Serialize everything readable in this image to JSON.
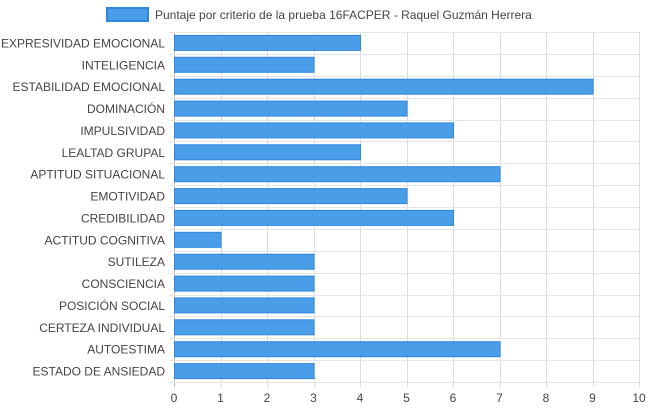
{
  "chart_data": {
    "type": "bar",
    "orientation": "horizontal",
    "categories": [
      "EXPRESIVIDAD EMOCIONAL",
      "INTELIGENCIA",
      "ESTABILIDAD EMOCIONAL",
      "DOMINACIÓN",
      "IMPULSIVIDAD",
      "LEALTAD GRUPAL",
      "APTITUD SITUACIONAL",
      "EMOTIVIDAD",
      "CREDIBILIDAD",
      "ACTITUD COGNITIVA",
      "SUTILEZA",
      "CONSCIENCIA",
      "POSICIÓN SOCIAL",
      "CERTEZA INDIVIDUAL",
      "AUTOESTIMA",
      "ESTADO DE ANSIEDAD"
    ],
    "series": [
      {
        "name": "Puntaje por criterio de la prueba 16FACPER - Raquel Guzmán Herrera",
        "values": [
          4,
          3,
          9,
          5,
          6,
          4,
          7,
          5,
          6,
          1,
          3,
          3,
          3,
          3,
          7,
          3
        ],
        "color": "#4a9ee8",
        "border_color": "#2f86e0"
      }
    ],
    "x_ticks": [
      "0",
      "1",
      "2",
      "3",
      "4",
      "5",
      "6",
      "7",
      "8",
      "9",
      "10"
    ],
    "xlim": [
      0,
      10
    ],
    "grid": true,
    "legend_position": "top"
  }
}
